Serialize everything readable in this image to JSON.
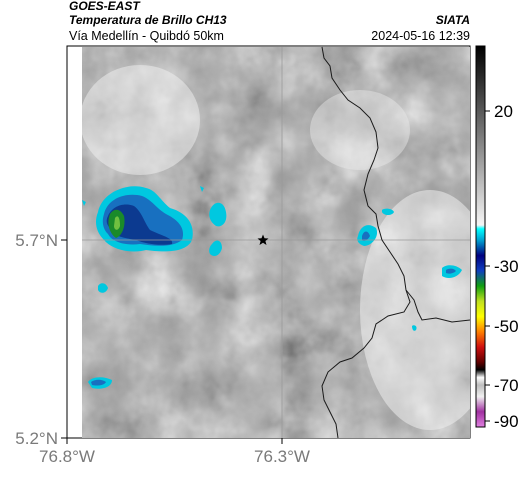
{
  "header": {
    "satellite": "GOES-EAST",
    "product": "Temperatura de Brillo CH13",
    "organization": "SIATA",
    "region": "Vía Medellín - Quibdó 50km",
    "datetime": "2024-05-16 12:39"
  },
  "axes": {
    "lat_ticks": [
      "5.7°N",
      "5.2°N"
    ],
    "lon_ticks": [
      "76.8°W",
      "76.3°W"
    ]
  },
  "colorbar": {
    "ticks": [
      "20",
      "-30",
      "-50",
      "-70",
      "-90"
    ]
  },
  "marker": {
    "name": "star-marker"
  }
}
